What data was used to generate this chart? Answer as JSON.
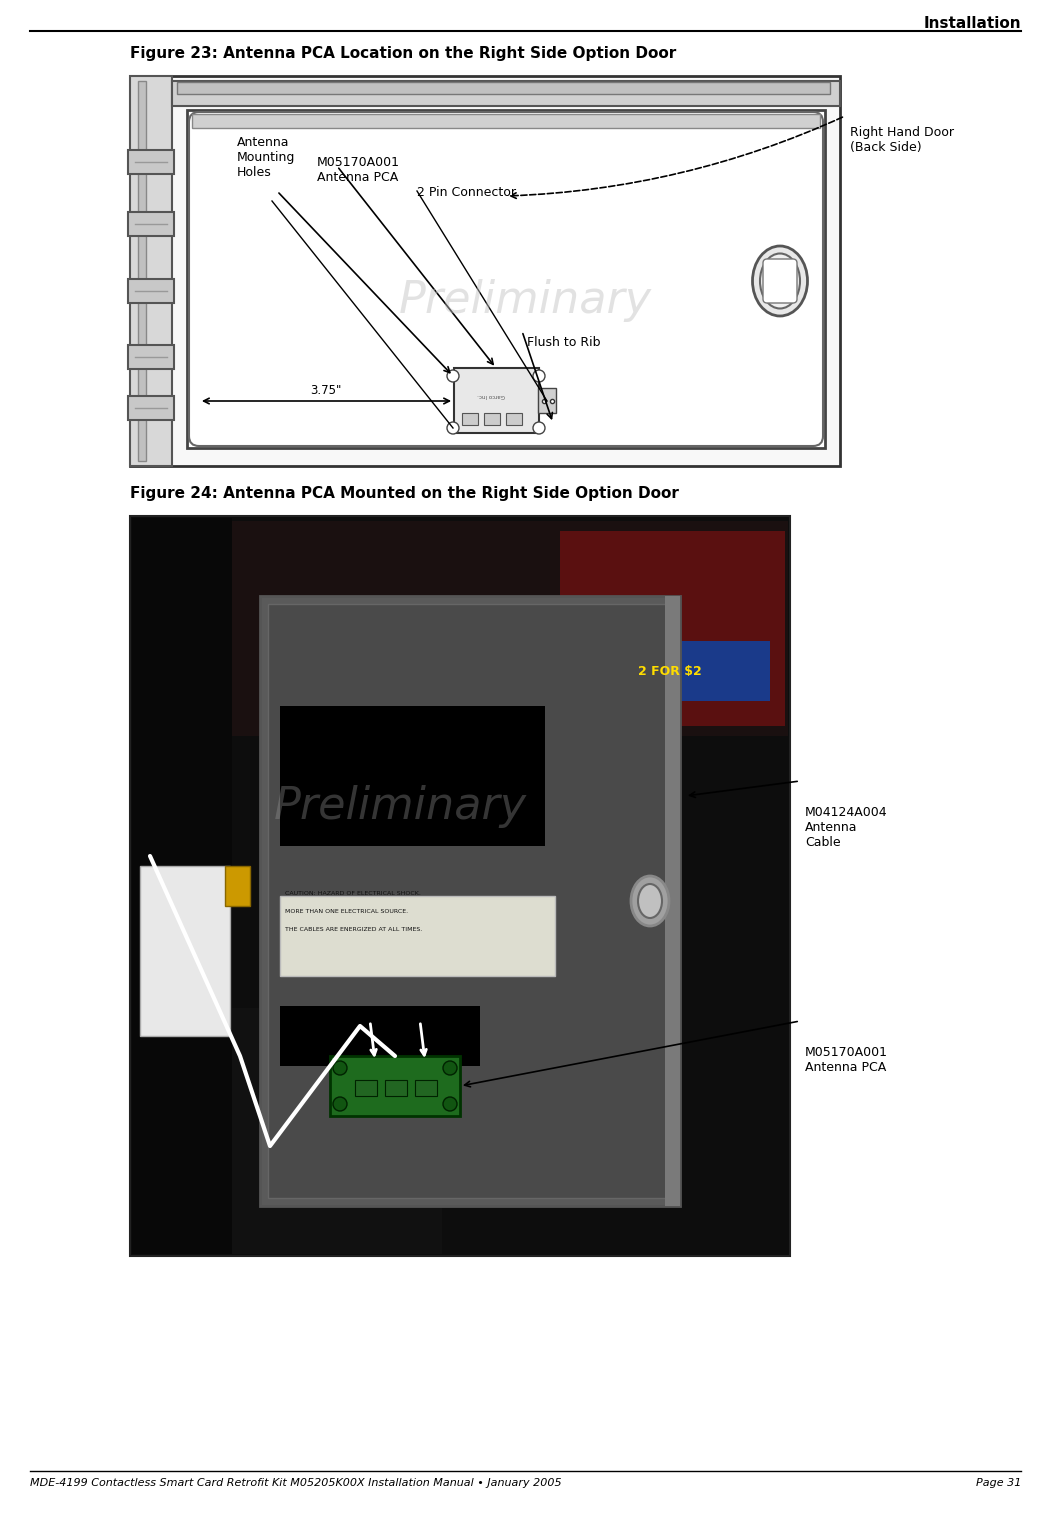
{
  "page_title": "Installation",
  "fig23_title": "Figure 23: Antenna PCA Location on the Right Side Option Door",
  "fig24_title": "Figure 24: Antenna PCA Mounted on the Right Side Option Door",
  "footer_left": "MDE-4199 Contactless Smart Card Retrofit Kit M05205K00X Installation Manual • January 2005",
  "footer_right": "Page 31",
  "bg_color": "#ffffff",
  "watermark_text": "Preliminary",
  "watermark_color": "#c0c0c0"
}
